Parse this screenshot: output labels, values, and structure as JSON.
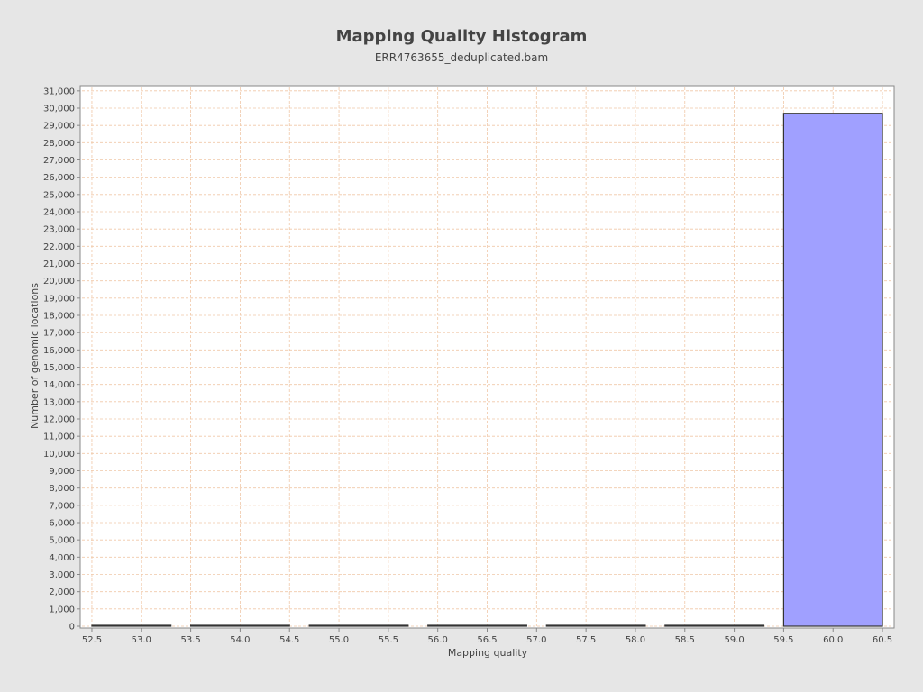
{
  "chart_data": {
    "type": "bar",
    "title": "Mapping Quality Histogram",
    "subtitle": "ERR4763655_deduplicated.bam",
    "xlabel": "Mapping quality",
    "ylabel": "Number of genomic locations",
    "xlim": [
      52.4,
      60.6
    ],
    "ylim": [
      0,
      31200
    ],
    "x_ticks": [
      "52.5",
      "53.0",
      "53.5",
      "54.0",
      "54.5",
      "55.0",
      "55.5",
      "56.0",
      "56.5",
      "57.0",
      "57.5",
      "58.0",
      "58.5",
      "59.0",
      "59.5",
      "60.0",
      "60.5"
    ],
    "y_ticks": [
      "0",
      "1,000",
      "2,000",
      "3,000",
      "4,000",
      "5,000",
      "6,000",
      "7,000",
      "8,000",
      "9,000",
      "10,000",
      "11,000",
      "12,000",
      "13,000",
      "14,000",
      "15,000",
      "16,000",
      "17,000",
      "18,000",
      "19,000",
      "20,000",
      "21,000",
      "22,000",
      "23,000",
      "24,000",
      "25,000",
      "26,000",
      "27,000",
      "28,000",
      "29,000",
      "30,000",
      "31,000"
    ],
    "bins": [
      {
        "start": 52.5,
        "end": 53.3,
        "value": 5
      },
      {
        "start": 53.5,
        "end": 54.5,
        "value": 5
      },
      {
        "start": 54.7,
        "end": 55.7,
        "value": 8
      },
      {
        "start": 55.9,
        "end": 56.9,
        "value": 10
      },
      {
        "start": 57.1,
        "end": 58.1,
        "value": 40
      },
      {
        "start": 58.3,
        "end": 59.3,
        "value": 35
      },
      {
        "start": 59.5,
        "end": 60.5,
        "value": 29700
      }
    ],
    "grid": true,
    "bar_color": "#a0a0ff",
    "bar_edge_color": "#333333",
    "grid_color": "#f0c8a8"
  }
}
